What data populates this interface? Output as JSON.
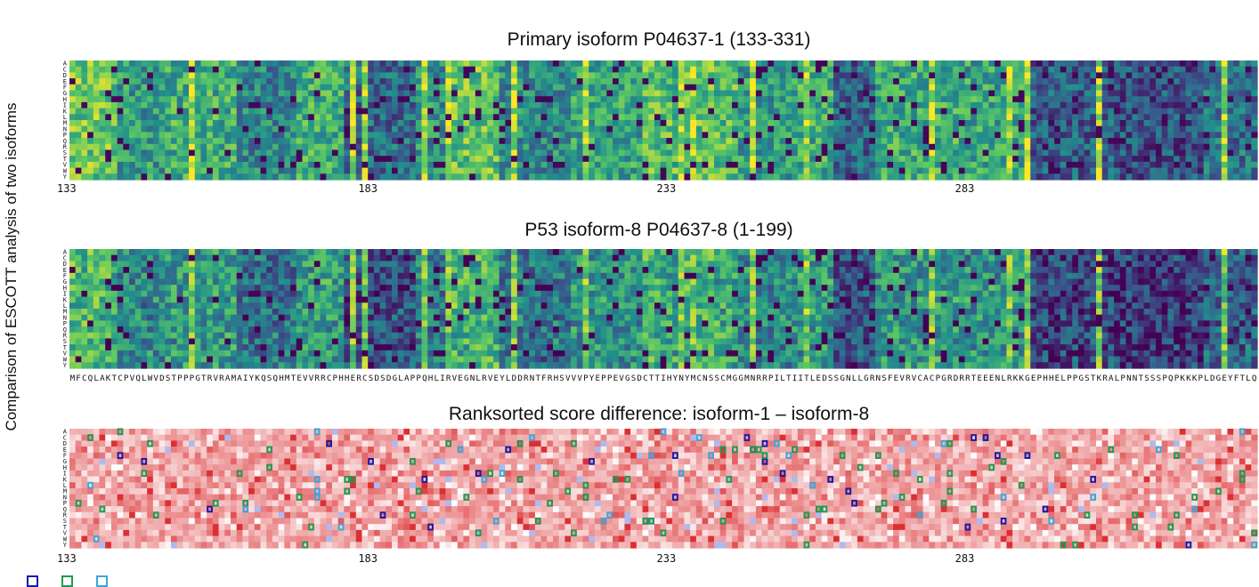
{
  "figure": {
    "ylabel": "Comparison of ESCOTT analysis of two isoforms"
  },
  "colors": {
    "viridis": [
      "#440154",
      "#3b528b",
      "#21918c",
      "#5ec962",
      "#fde725"
    ],
    "diff_negative": "#4a66d6",
    "diff_positive": "#d7191c",
    "marker_isoform8_1_48": "#1a1aa6",
    "marker_isoform8_gt48": "#1f9950",
    "marker_isoform1_8_48": "#3ea5d8"
  },
  "chart_data": [
    {
      "type": "heatmap",
      "title": "Primary isoform P04637-1 (133-331)",
      "y_categories": [
        "A",
        "C",
        "D",
        "E",
        "F",
        "G",
        "H",
        "I",
        "K",
        "L",
        "M",
        "N",
        "P",
        "Q",
        "R",
        "S",
        "T",
        "V",
        "W",
        "Y"
      ],
      "x_range": [
        133,
        331
      ],
      "x_ticks": [
        133,
        183,
        233,
        283
      ],
      "colormap": "viridis"
    },
    {
      "type": "heatmap",
      "title": "P53 isoform-8 P04637-8 (1-199)",
      "y_categories": [
        "A",
        "C",
        "D",
        "E",
        "F",
        "G",
        "H",
        "I",
        "K",
        "L",
        "M",
        "N",
        "P",
        "Q",
        "R",
        "S",
        "T",
        "V",
        "W",
        "Y"
      ],
      "x_range": [
        1,
        199
      ],
      "sequence": "MFCQLAKTCPVQLWVDSTPPPGTRVRAMAIYKQSQHMTEVVRRCPHHERCSDSDGLAPPQHLIRVEGNLRVEYLDDRNTFRHSVVVPYEPPEVGSDCTTIHYNYMCNSSCMGGMNRRPILTIITLEDSSGNLLGRNSFEVRVCACPGRDRRTEEENLRKKGEPHHELPPGSTKRALPNNTSSSPQPKKKPLDGEYFTLQ",
      "colormap": "viridis"
    },
    {
      "type": "heatmap",
      "title": "Ranksorted score difference: isoform-1 – isoform-8",
      "y_categories": [
        "A",
        "C",
        "D",
        "E",
        "F",
        "G",
        "H",
        "I",
        "K",
        "L",
        "M",
        "N",
        "P",
        "Q",
        "R",
        "S",
        "T",
        "V",
        "W",
        "Y"
      ],
      "x_range": [
        133,
        331
      ],
      "x_ticks": [
        133,
        183,
        233,
        283
      ],
      "colormap": "blue-white-red"
    }
  ]
}
